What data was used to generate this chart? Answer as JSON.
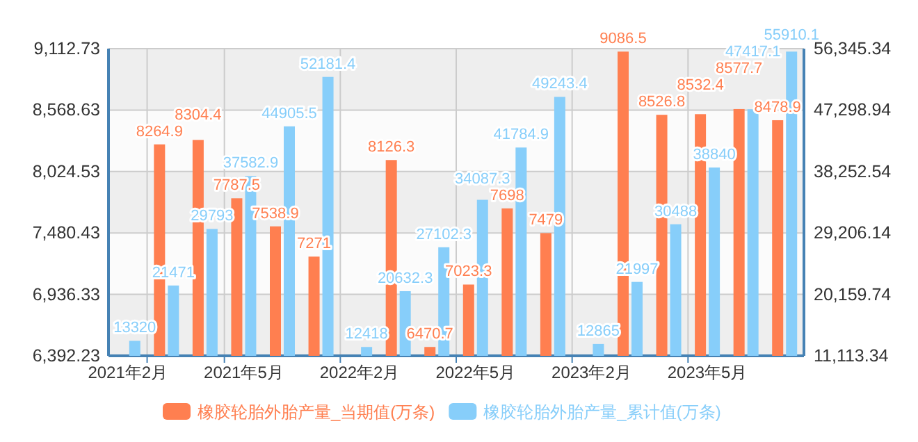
{
  "chart_data": {
    "type": "bar",
    "categories": [
      "2021年2月",
      null,
      null,
      "2021年5月",
      null,
      null,
      "2022年2月",
      null,
      null,
      "2022年5月",
      null,
      null,
      "2023年2月",
      null,
      null,
      "2023年5月",
      null,
      null
    ],
    "series": [
      {
        "name": "橡胶轮胎外胎产量_当期值(万条)",
        "color": "#ff7f50",
        "values": [
          null,
          8264.9,
          8304.4,
          7787.5,
          7538.9,
          7271,
          null,
          8126.3,
          6470.7,
          7023.3,
          7698,
          7479,
          null,
          9086.5,
          8526.8,
          8532.4,
          8577.7,
          8478.9
        ]
      },
      {
        "name": "橡胶轮胎外胎产量_累计值(万条)",
        "color": "#87cefa",
        "axis": "y2",
        "values": [
          13320,
          21471,
          29793,
          37582.9,
          44905.5,
          52181.4,
          12418,
          20632.3,
          27102.3,
          34087.3,
          41784.9,
          49243.4,
          12865,
          21997,
          30488,
          38840,
          47417.1,
          55910.1
        ]
      }
    ],
    "ylim": [
      6392.23,
      9112.73
    ],
    "yticks": [
      {
        "value": 6392.23,
        "label": "6,392.23"
      },
      {
        "value": 6936.33,
        "label": "6,936.33"
      },
      {
        "value": 7480.43,
        "label": "7,480.43"
      },
      {
        "value": 8024.53,
        "label": "8,024.53"
      },
      {
        "value": 8568.63,
        "label": "8,568.63"
      },
      {
        "value": 9112.73,
        "label": "9,112.73"
      }
    ],
    "y2lim": [
      11113.34,
      56345.34
    ],
    "y2ticks": [
      {
        "value": 11113.34,
        "label": "11,113.34"
      },
      {
        "value": 20159.74,
        "label": "20,159.74"
      },
      {
        "value": 29206.14,
        "label": "29,206.14"
      },
      {
        "value": 38252.54,
        "label": "38,252.54"
      },
      {
        "value": 47298.94,
        "label": "47,298.94"
      },
      {
        "value": 56345.34,
        "label": "56,345.34"
      }
    ],
    "grid": true,
    "legend": "bottom",
    "data_labels": true
  }
}
